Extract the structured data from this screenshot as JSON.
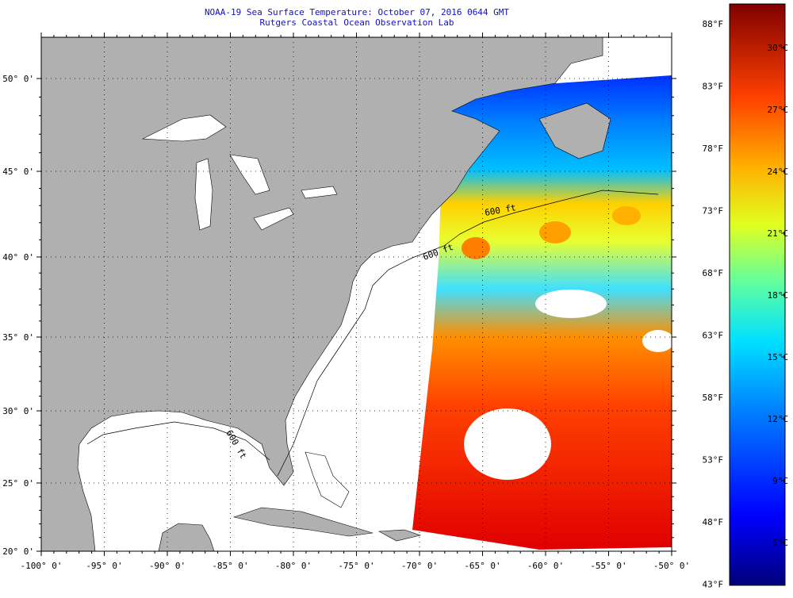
{
  "title": {
    "line1": "NOAA-19 Sea Surface Temperature:  October 07, 2016 0644 GMT",
    "line2": "Rutgers Coastal Ocean Observation Lab"
  },
  "map": {
    "lon_labels": [
      "-100° 0'",
      "-95° 0'",
      "-90° 0'",
      "-85° 0'",
      "-80° 0'",
      "-75° 0'",
      "-70° 0'",
      "-65° 0'",
      "-60° 0'",
      "-55° 0'",
      "-50° 0'"
    ],
    "lon_values": [
      -100,
      -95,
      -90,
      -85,
      -80,
      -75,
      -70,
      -65,
      -60,
      -55,
      -50
    ],
    "lat_labels": [
      "20° 0'",
      "25° 0'",
      "30° 0'",
      "35° 0'",
      "40° 0'",
      "45° 0'",
      "50° 0'"
    ],
    "lat_values": [
      20,
      25,
      30,
      35,
      40,
      45,
      50
    ],
    "contour_labels": [
      "600 ft",
      "600 ft",
      "600 ft"
    ],
    "colors": {
      "land": "#b0b0b0",
      "ocean_nodata": "#ffffff",
      "title": "#1010c0"
    }
  },
  "colorbar": {
    "fahrenheit": [
      "88°F",
      "83°F",
      "78°F",
      "73°F",
      "68°F",
      "63°F",
      "58°F",
      "53°F",
      "48°F",
      "43°F"
    ],
    "celsius": [
      "30°C",
      "27°C",
      "24°C",
      "21°C",
      "18°C",
      "15°C",
      "12°C",
      "9°C",
      "6°C"
    ],
    "range_c": [
      6,
      32
    ]
  }
}
